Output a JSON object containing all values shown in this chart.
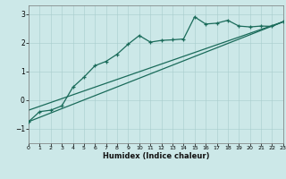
{
  "xlabel": "Humidex (Indice chaleur)",
  "background_color": "#cce8e8",
  "line_color": "#1a6b5a",
  "xlim": [
    0,
    23
  ],
  "ylim": [
    -1.5,
    3.3
  ],
  "yticks": [
    -1,
    0,
    1,
    2,
    3
  ],
  "xticks": [
    0,
    1,
    2,
    3,
    4,
    5,
    6,
    7,
    8,
    9,
    10,
    11,
    12,
    13,
    14,
    15,
    16,
    17,
    18,
    19,
    20,
    21,
    22,
    23
  ],
  "series1_x": [
    0,
    1,
    2,
    3,
    4,
    5,
    6,
    7,
    8,
    9,
    10,
    11,
    12,
    13,
    14,
    15,
    16,
    17,
    18,
    19,
    20,
    21,
    22,
    23
  ],
  "series1_y": [
    -0.75,
    -0.4,
    -0.35,
    -0.2,
    0.45,
    0.8,
    1.2,
    1.35,
    1.6,
    1.95,
    2.25,
    2.02,
    2.08,
    2.1,
    2.13,
    2.9,
    2.65,
    2.68,
    2.78,
    2.58,
    2.55,
    2.58,
    2.57,
    2.73
  ],
  "series2_x": [
    0,
    23
  ],
  "series2_y": [
    -0.75,
    2.73
  ],
  "series3_x": [
    0,
    23
  ],
  "series3_y": [
    -0.35,
    2.73
  ]
}
